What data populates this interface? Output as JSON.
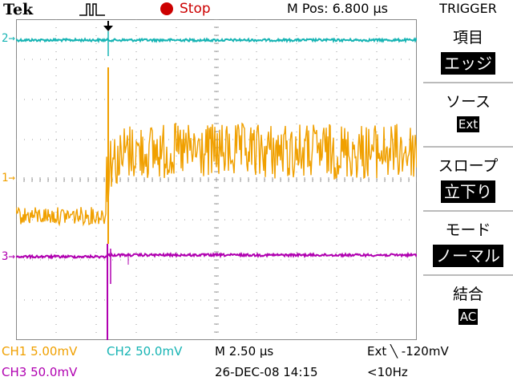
{
  "header": {
    "brand": "Tek",
    "run_state": "Stop",
    "m_pos": "M Pos: 6.800 μs",
    "trigger_title": "TRIGGER"
  },
  "menu": {
    "items": [
      {
        "label": "項目",
        "value": "エッジ"
      },
      {
        "label": "ソース",
        "value": "Ext"
      },
      {
        "label": "スロープ",
        "value": "立下り"
      },
      {
        "label": "モード",
        "value": "ノーマル"
      },
      {
        "label": "結合",
        "value": "AC"
      }
    ]
  },
  "markers": {
    "ch1": "1",
    "ch2": "2",
    "ch3": "3"
  },
  "status": {
    "ch1": "CH1  5.00mV",
    "ch2": "CH2  50.0mV",
    "ch3": "CH3  50.0mV",
    "timebase": "M 2.50 μs",
    "trigger": "Ext ╲ -120mV",
    "date": "26-DEC-08 14:15",
    "freq": "<10Hz"
  },
  "colors": {
    "ch1": "#f0a000",
    "ch2": "#17b4b4",
    "ch3": "#b000b0",
    "stop": "#cc0000"
  }
}
